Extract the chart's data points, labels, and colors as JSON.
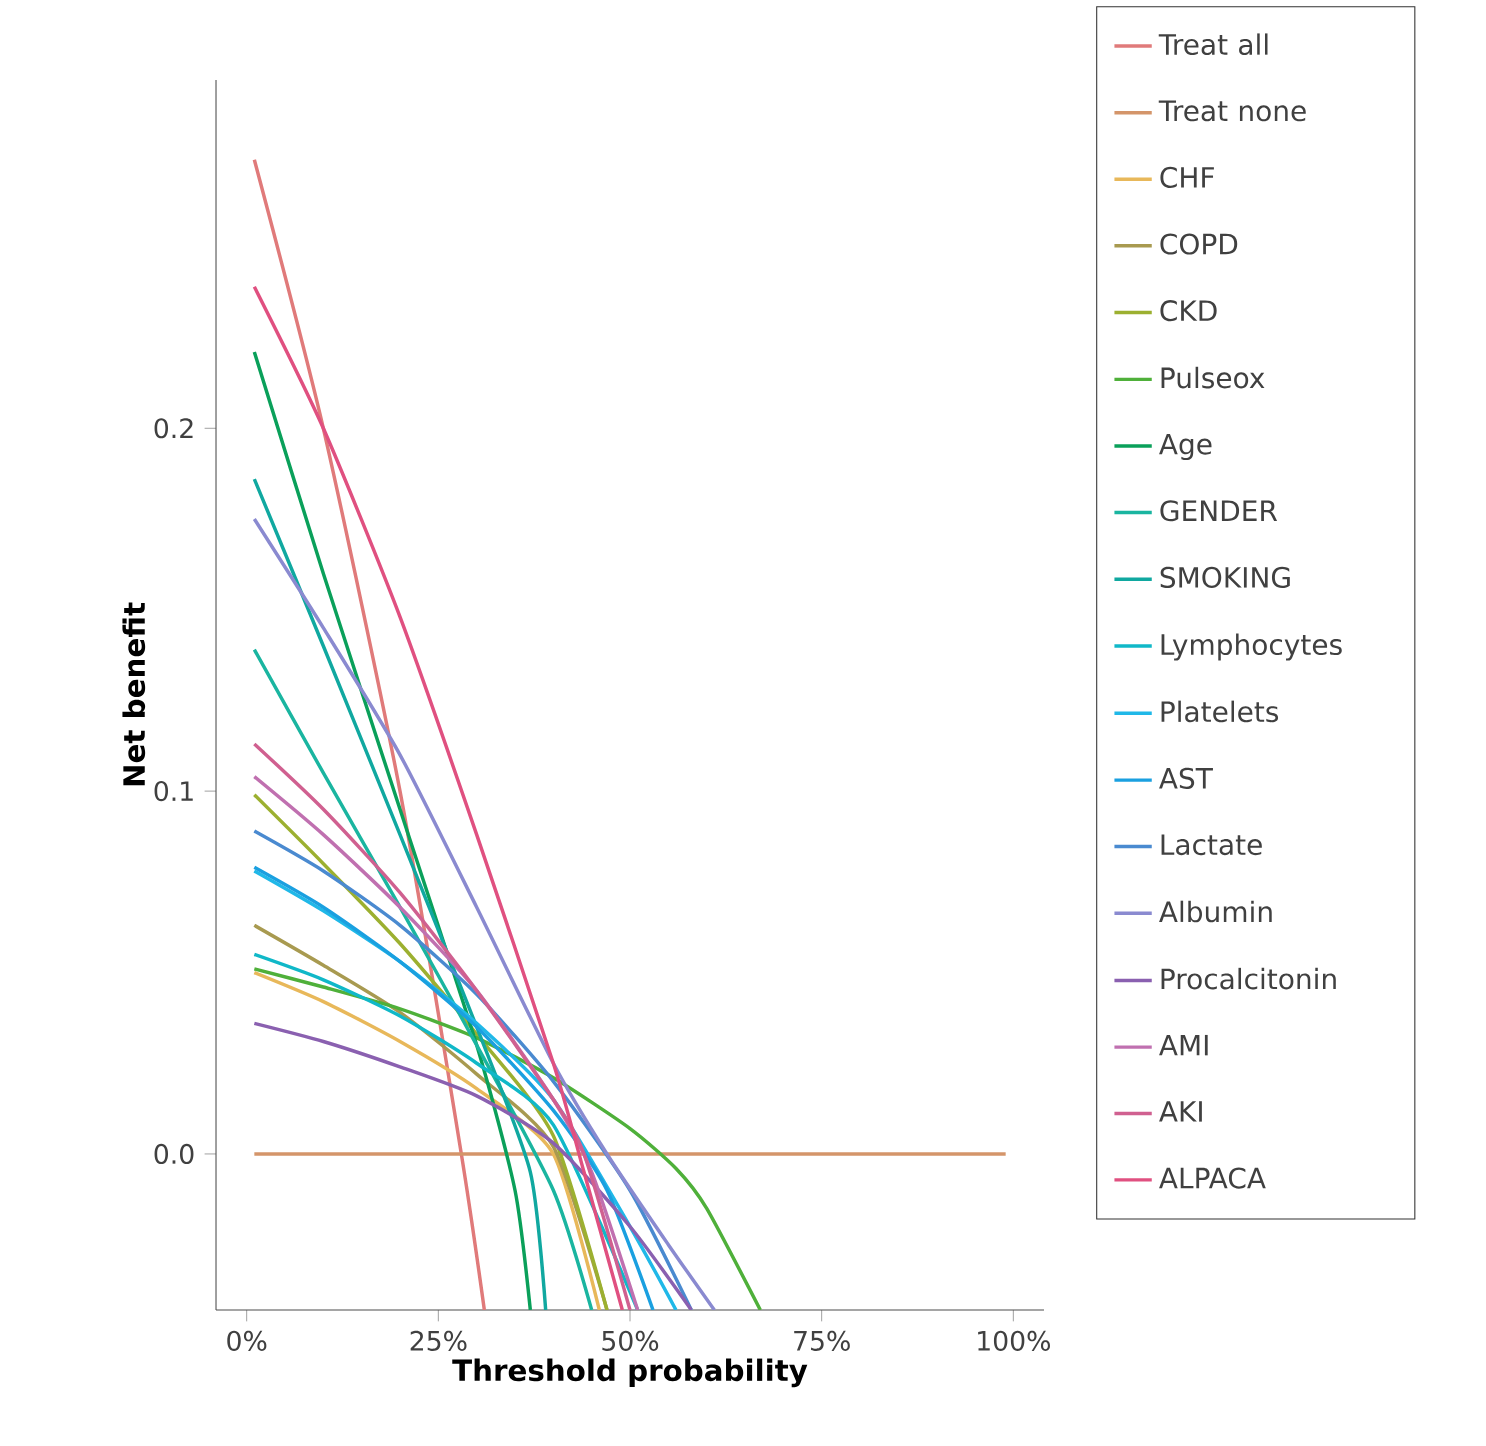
{
  "chart_data": {
    "type": "line",
    "xlabel": "Threshold probability",
    "ylabel": "Net benefit",
    "xlim": [
      -4,
      104
    ],
    "ylim": [
      -0.043,
      0.296
    ],
    "xticks": [
      {
        "value": 0,
        "label": "0%"
      },
      {
        "value": 25,
        "label": "25%"
      },
      {
        "value": 50,
        "label": "50%"
      },
      {
        "value": 75,
        "label": "75%"
      },
      {
        "value": 100,
        "label": "100%"
      }
    ],
    "yticks": [
      {
        "value": 0,
        "label": "0.0"
      },
      {
        "value": 0.1,
        "label": "0.1"
      },
      {
        "value": 0.2,
        "label": "0.2"
      }
    ],
    "legend": "right",
    "series": [
      {
        "name": "Treat all",
        "color": "#e07a7a",
        "x": [
          1,
          10,
          20,
          28,
          31
        ],
        "values": [
          0.274,
          0.2,
          0.1,
          0,
          -0.043
        ]
      },
      {
        "name": "Treat none",
        "color": "#d4956a",
        "x": [
          1,
          99
        ],
        "values": [
          0,
          0
        ]
      },
      {
        "name": "CHF",
        "color": "#e8b85a",
        "x": [
          1,
          10,
          20,
          30,
          40,
          46
        ],
        "values": [
          0.05,
          0.042,
          0.031,
          0.018,
          0.0,
          -0.043
        ]
      },
      {
        "name": "COPD",
        "color": "#a89a50",
        "x": [
          1,
          10,
          20,
          30,
          40,
          47
        ],
        "values": [
          0.063,
          0.052,
          0.039,
          0.022,
          0.002,
          -0.043
        ]
      },
      {
        "name": "CKD",
        "color": "#9cb030",
        "x": [
          1,
          10,
          20,
          30,
          40,
          47
        ],
        "values": [
          0.099,
          0.08,
          0.058,
          0.033,
          0.005,
          -0.043
        ]
      },
      {
        "name": "Pulseox",
        "color": "#4fb03a",
        "x": [
          1,
          10,
          20,
          30,
          40,
          50,
          56,
          60,
          67
        ],
        "values": [
          0.051,
          0.046,
          0.04,
          0.032,
          0.021,
          0.007,
          -0.004,
          -0.015,
          -0.043
        ]
      },
      {
        "name": "Age",
        "color": "#0aa05a",
        "x": [
          1,
          10,
          20,
          30,
          35,
          37
        ],
        "values": [
          0.221,
          0.16,
          0.095,
          0.03,
          -0.01,
          -0.043
        ]
      },
      {
        "name": "GENDER",
        "color": "#1ab5a0",
        "x": [
          1,
          10,
          20,
          30,
          40,
          45
        ],
        "values": [
          0.139,
          0.105,
          0.068,
          0.03,
          -0.01,
          -0.043
        ]
      },
      {
        "name": "SMOKING",
        "color": "#10a8a0",
        "x": [
          1,
          10,
          20,
          30,
          37,
          39
        ],
        "values": [
          0.186,
          0.14,
          0.088,
          0.035,
          -0.005,
          -0.043
        ]
      },
      {
        "name": "Lymphocytes",
        "color": "#10b8c8",
        "x": [
          1,
          10,
          20,
          30,
          40,
          51
        ],
        "values": [
          0.055,
          0.048,
          0.038,
          0.025,
          0.008,
          -0.043
        ]
      },
      {
        "name": "Platelets",
        "color": "#20b8e8",
        "x": [
          1,
          10,
          20,
          30,
          40,
          50,
          56
        ],
        "values": [
          0.078,
          0.067,
          0.053,
          0.036,
          0.015,
          -0.02,
          -0.043
        ]
      },
      {
        "name": "AST",
        "color": "#1aa0e0",
        "x": [
          1,
          10,
          20,
          30,
          40,
          47,
          53
        ],
        "values": [
          0.079,
          0.068,
          0.053,
          0.035,
          0.012,
          -0.01,
          -0.043
        ]
      },
      {
        "name": "Lactate",
        "color": "#4a8ad0",
        "x": [
          1,
          10,
          20,
          30,
          40,
          50,
          58
        ],
        "values": [
          0.089,
          0.078,
          0.063,
          0.044,
          0.02,
          -0.01,
          -0.043
        ]
      },
      {
        "name": "Albumin",
        "color": "#8a8ad0",
        "x": [
          1,
          10,
          20,
          30,
          40,
          47,
          55,
          61
        ],
        "values": [
          0.175,
          0.145,
          0.11,
          0.068,
          0.025,
          0,
          -0.025,
          -0.043
        ]
      },
      {
        "name": "Procalcitonin",
        "color": "#8a60b0",
        "x": [
          1,
          10,
          20,
          30,
          40,
          50,
          58
        ],
        "values": [
          0.036,
          0.031,
          0.024,
          0.016,
          0.003,
          -0.02,
          -0.043
        ]
      },
      {
        "name": "AMI",
        "color": "#c070b0",
        "x": [
          1,
          10,
          20,
          30,
          40,
          45,
          51
        ],
        "values": [
          0.104,
          0.088,
          0.068,
          0.045,
          0.015,
          -0.005,
          -0.043
        ]
      },
      {
        "name": "AKI",
        "color": "#d06090",
        "x": [
          1,
          10,
          20,
          30,
          40,
          44,
          50
        ],
        "values": [
          0.113,
          0.095,
          0.072,
          0.045,
          0.015,
          0,
          -0.043
        ]
      },
      {
        "name": "ALPACA",
        "color": "#e05080",
        "x": [
          1,
          10,
          20,
          30,
          40,
          44,
          49
        ],
        "values": [
          0.239,
          0.2,
          0.148,
          0.088,
          0.025,
          -0.005,
          -0.043
        ]
      }
    ]
  }
}
